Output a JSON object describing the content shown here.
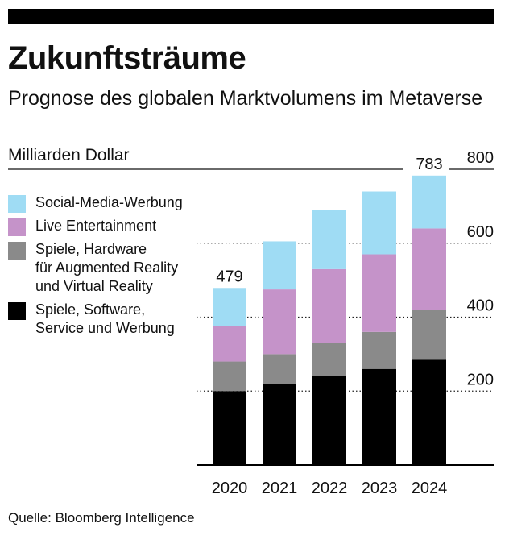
{
  "title": "Zukunftsträume",
  "subtitle": "Prognose des globalen Marktvolumens im Metaverse",
  "source": "Quelle: Bloomberg Intelligence",
  "colors": {
    "social": "#9fdcf4",
    "live": "#c593c9",
    "hardware": "#8a8a8a",
    "software": "#000000"
  },
  "chart_data": {
    "type": "bar",
    "stacked": true,
    "ylabel": "Milliarden Dollar",
    "ylim": [
      0,
      800
    ],
    "yticks": [
      200,
      400,
      600,
      800
    ],
    "categories": [
      "2020",
      "2021",
      "2022",
      "2023",
      "2024"
    ],
    "series": [
      {
        "key": "software",
        "name": "Spiele, Software,\nService und Werbung",
        "values": [
          200,
          220,
          240,
          260,
          285
        ]
      },
      {
        "key": "hardware",
        "name": "Spiele, Hardware\nfür Augmented Reality\nund Virtual Reality",
        "values": [
          80,
          80,
          90,
          100,
          135
        ]
      },
      {
        "key": "live",
        "name": "Live Entertainment",
        "values": [
          95,
          175,
          200,
          210,
          220
        ]
      },
      {
        "key": "social",
        "name": "Social-Media-Werbung",
        "values": [
          104,
          130,
          160,
          170,
          143
        ]
      }
    ],
    "bar_labels": [
      {
        "category": "2020",
        "text": "479"
      },
      {
        "category": "2024",
        "text": "783"
      }
    ]
  }
}
